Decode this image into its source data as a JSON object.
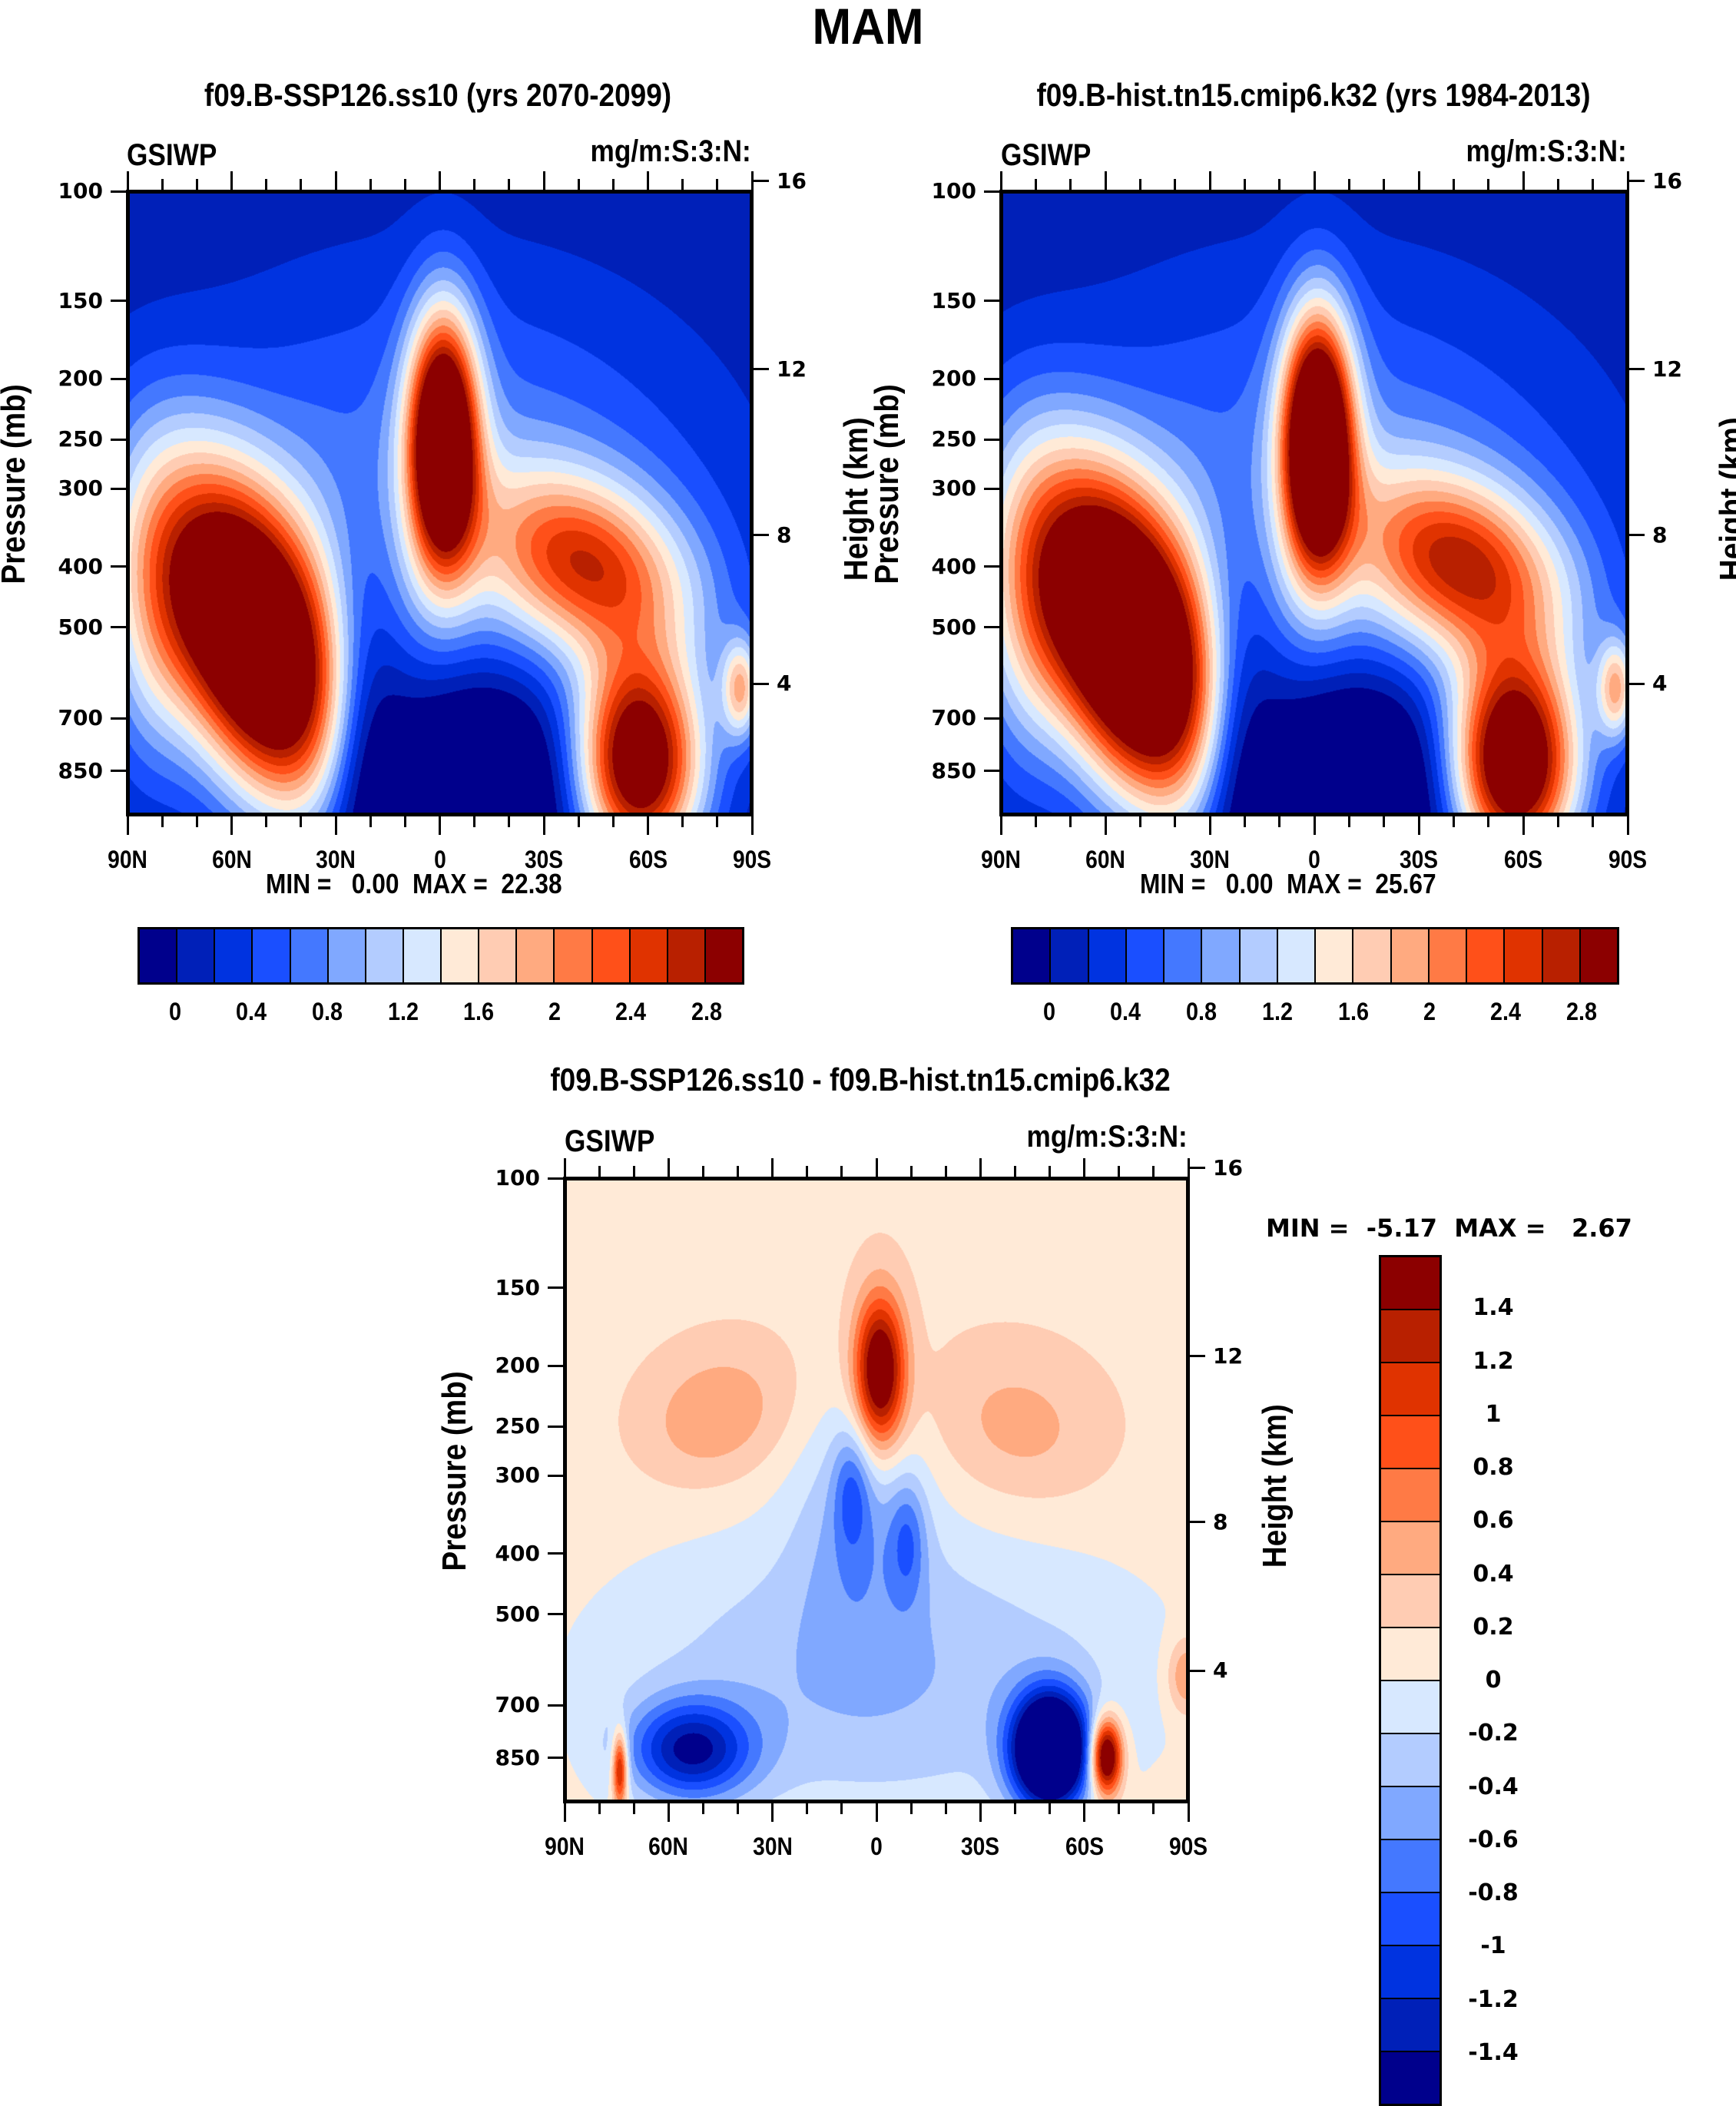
{
  "figure": {
    "title": "MAM"
  },
  "chart_data": [
    {
      "type": "heatmap",
      "id": "panel-ssp126",
      "title": "f09.B-SSP126.ss10 (yrs 2070-2099)",
      "left_string": "GSIWP",
      "right_string": "mg/m:S:3:N:",
      "xlabel": "",
      "ylabel": "Pressure (mb)",
      "ylabel_right": "Height (km)",
      "x_ticks": [
        "90N",
        "60N",
        "30N",
        "0",
        "30S",
        "60S",
        "90S"
      ],
      "x_range": [
        90,
        -90
      ],
      "y_ticks": [
        100,
        150,
        200,
        250,
        300,
        400,
        500,
        700,
        850
      ],
      "y_range": [
        100,
        1000
      ],
      "y_scale": "log",
      "z_ticks": [
        16,
        12,
        8,
        4
      ],
      "min_max": "MIN =   0.00  MAX =  22.38",
      "min": 0.0,
      "max": 22.38,
      "colorbar": {
        "orientation": "horizontal",
        "labels": [
          "0",
          "0.4",
          "0.8",
          "1.2",
          "1.6",
          "2",
          "2.4",
          "2.8"
        ],
        "levels": [
          0,
          0.2,
          0.4,
          0.6,
          0.8,
          1.0,
          1.2,
          1.4,
          1.6,
          1.8,
          2.0,
          2.2,
          2.4,
          2.6,
          2.8
        ]
      },
      "features": "Tropical upper-tropospheric maximum near equator (~200-500 mb); NH mid-latitude maximum 30N-80N (300-1000 mb); SH mid-latitude maximum 35S-75S (550-1000 mb); values exceed 2.8 in cores"
    },
    {
      "type": "heatmap",
      "id": "panel-hist",
      "title": "f09.B-hist.tn15.cmip6.k32 (yrs 1984-2013)",
      "left_string": "GSIWP",
      "right_string": "mg/m:S:3:N:",
      "xlabel": "",
      "ylabel": "Pressure (mb)",
      "ylabel_right": "Height (km)",
      "x_ticks": [
        "90N",
        "60N",
        "30N",
        "0",
        "30S",
        "60S",
        "90S"
      ],
      "x_range": [
        90,
        -90
      ],
      "y_ticks": [
        100,
        150,
        200,
        250,
        300,
        400,
        500,
        700,
        850
      ],
      "y_range": [
        100,
        1000
      ],
      "y_scale": "log",
      "z_ticks": [
        16,
        12,
        8,
        4
      ],
      "min_max": "MIN =   0.00  MAX =  25.67",
      "min": 0.0,
      "max": 25.67,
      "colorbar": {
        "orientation": "horizontal",
        "labels": [
          "0",
          "0.4",
          "0.8",
          "1.2",
          "1.6",
          "2",
          "2.4",
          "2.8"
        ],
        "levels": [
          0,
          0.2,
          0.4,
          0.6,
          0.8,
          1.0,
          1.2,
          1.4,
          1.6,
          1.8,
          2.0,
          2.2,
          2.4,
          2.6,
          2.8
        ]
      },
      "features": "Same structure as SSP126 panel with slightly larger/stronger tropical and mid-latitude maxima"
    },
    {
      "type": "heatmap",
      "id": "panel-diff",
      "title": "f09.B-SSP126.ss10 - f09.B-hist.tn15.cmip6.k32",
      "left_string": "GSIWP",
      "right_string": "mg/m:S:3:N:",
      "xlabel": "",
      "ylabel": "Pressure (mb)",
      "ylabel_right": "Height (km)",
      "x_ticks": [
        "90N",
        "60N",
        "30N",
        "0",
        "30S",
        "60S",
        "90S"
      ],
      "x_range": [
        90,
        -90
      ],
      "y_ticks": [
        100,
        150,
        200,
        250,
        300,
        400,
        500,
        700,
        850
      ],
      "y_range": [
        100,
        1000
      ],
      "y_scale": "log",
      "z_ticks": [
        16,
        12,
        8,
        4
      ],
      "min_max": "MIN =  -5.17  MAX =   2.67",
      "min": -5.17,
      "max": 2.67,
      "colorbar": {
        "orientation": "vertical",
        "labels": [
          "1.4",
          "1.2",
          "1",
          "0.8",
          "0.6",
          "0.4",
          "0.2",
          "0",
          "-0.2",
          "-0.4",
          "-0.6",
          "-0.8",
          "-1",
          "-1.2",
          "-1.4"
        ],
        "levels": [
          -1.4,
          -1.2,
          -1.0,
          -0.8,
          -0.6,
          -0.4,
          -0.2,
          0,
          0.2,
          0.4,
          0.6,
          0.8,
          1.0,
          1.2,
          1.4
        ]
      },
      "features": "Positive anomaly (>1.4) near equator at ~200 mb; weak positive 0-0.4 in upper troposphere; negative anomalies below ~500 mb in NH 40N-75N and strong negative (< -1.4) near 45S-60S at 700-1000 mb; positive > 1.4 near 65S-70S surface"
    }
  ],
  "palette": [
    "#00008C",
    "#0020B8",
    "#0033E0",
    "#1A4FFF",
    "#4478FF",
    "#80A8FF",
    "#B3CCFF",
    "#D7E8FF",
    "#FFEAD7",
    "#FFCCB3",
    "#FFAA80",
    "#FF7A45",
    "#FF5019",
    "#E03300",
    "#B82000",
    "#8C0000"
  ]
}
